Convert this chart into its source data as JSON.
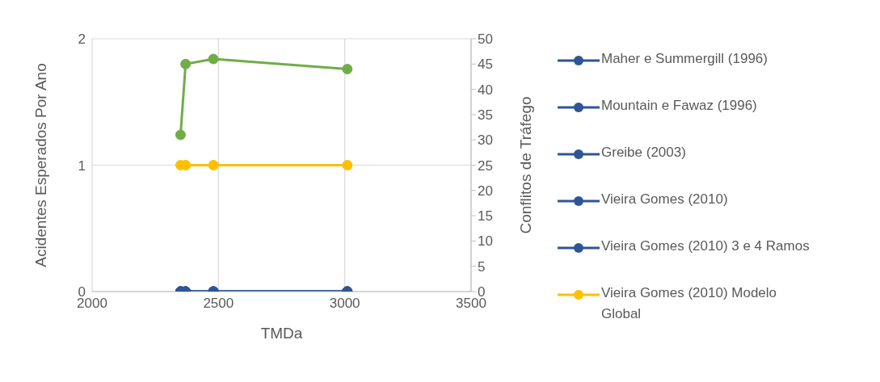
{
  "chart_data": {
    "type": "line",
    "xlabel": "TMDa",
    "ylabel": "Acidentes Esperados Por Ano",
    "y2label": "Conflitos de Tráfego",
    "x": [
      2350,
      2370,
      2480,
      3010
    ],
    "xlim": [
      2000,
      3500
    ],
    "xticks": [
      2000,
      2500,
      3000,
      3500
    ],
    "ylim": [
      0,
      2
    ],
    "yticks": [
      0,
      1,
      2
    ],
    "y2lim": [
      0,
      50
    ],
    "y2ticks": [
      0,
      5,
      10,
      15,
      20,
      25,
      30,
      35,
      40,
      45,
      50
    ],
    "grid": true,
    "legend": "right",
    "marker": "circle",
    "line_style": "solid",
    "series": [
      {
        "name": "Maher e Summergill (1996)",
        "color": "#2f5597",
        "values": [
          0,
          0,
          0,
          0
        ]
      },
      {
        "name": "Mountain e Fawaz (1996)",
        "color": "#2f5597",
        "values": [
          0,
          0,
          0,
          0
        ]
      },
      {
        "name": "Greibe (2003)",
        "color": "#2f5597",
        "values": [
          0,
          0,
          0,
          0
        ]
      },
      {
        "name": "Vieira Gomes (2010)",
        "color": "#2f5597",
        "values": [
          0,
          0,
          0,
          0
        ]
      },
      {
        "name": "Vieira Gomes (2010) 3 e 4 Ramos",
        "color": "#2f5597",
        "values": [
          0,
          0,
          0,
          0
        ]
      },
      {
        "name": "Vieira Gomes (2010) Modelo Global",
        "color": "#ffc000",
        "values": [
          1,
          1,
          1,
          1
        ]
      },
      {
        "color": "#70ad47",
        "values": [
          31,
          45,
          46,
          44
        ],
        "axis": "y2"
      }
    ]
  }
}
